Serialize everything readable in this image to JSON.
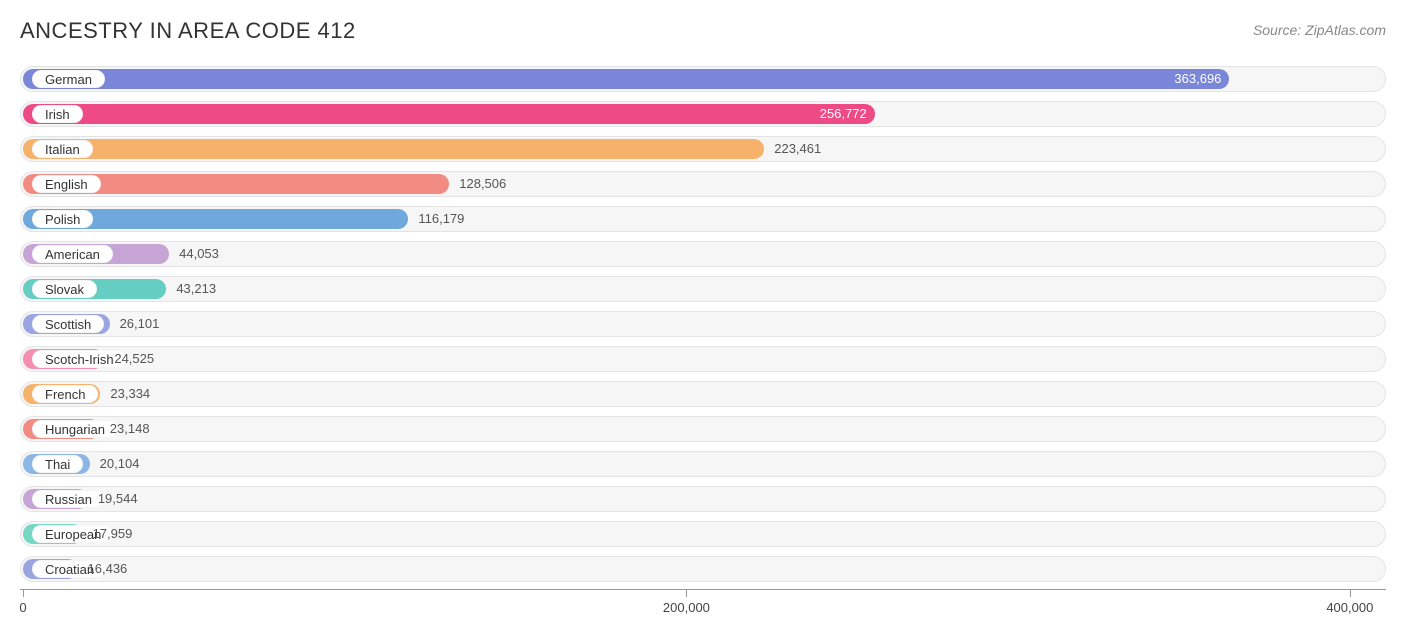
{
  "title": "ANCESTRY IN AREA CODE 412",
  "source": "Source: ZipAtlas.com",
  "chart": {
    "type": "bar",
    "x_max": 410000,
    "track_bg": "#f6f6f6",
    "track_border": "#e4e4e4",
    "label_fontsize": 13,
    "value_fontsize": 13,
    "bars": [
      {
        "label": "German",
        "value": 363696,
        "display": "363,696",
        "color": "#7a86d8",
        "value_text_color": "#ffffff",
        "value_inside": true
      },
      {
        "label": "Irish",
        "value": 256772,
        "display": "256,772",
        "color": "#ee4a86",
        "value_text_color": "#ffffff",
        "value_inside": true
      },
      {
        "label": "Italian",
        "value": 223461,
        "display": "223,461",
        "color": "#f6b26b",
        "value_text_color": "#555555",
        "value_inside": false
      },
      {
        "label": "English",
        "value": 128506,
        "display": "128,506",
        "color": "#f28b82",
        "value_text_color": "#555555",
        "value_inside": false
      },
      {
        "label": "Polish",
        "value": 116179,
        "display": "116,179",
        "color": "#6fa8dc",
        "value_text_color": "#555555",
        "value_inside": false
      },
      {
        "label": "American",
        "value": 44053,
        "display": "44,053",
        "color": "#c6a4d6",
        "value_text_color": "#555555",
        "value_inside": false
      },
      {
        "label": "Slovak",
        "value": 43213,
        "display": "43,213",
        "color": "#66cdc2",
        "value_text_color": "#555555",
        "value_inside": false
      },
      {
        "label": "Scottish",
        "value": 26101,
        "display": "26,101",
        "color": "#9aa4e0",
        "value_text_color": "#555555",
        "value_inside": false
      },
      {
        "label": "Scotch-Irish",
        "value": 24525,
        "display": "24,525",
        "color": "#f48fb1",
        "value_text_color": "#555555",
        "value_inside": false
      },
      {
        "label": "French",
        "value": 23334,
        "display": "23,334",
        "color": "#f6b26b",
        "value_text_color": "#555555",
        "value_inside": false
      },
      {
        "label": "Hungarian",
        "value": 23148,
        "display": "23,148",
        "color": "#f28b82",
        "value_text_color": "#555555",
        "value_inside": false
      },
      {
        "label": "Thai",
        "value": 20104,
        "display": "20,104",
        "color": "#8bb6e6",
        "value_text_color": "#555555",
        "value_inside": false
      },
      {
        "label": "Russian",
        "value": 19544,
        "display": "19,544",
        "color": "#c6a4d6",
        "value_text_color": "#555555",
        "value_inside": false
      },
      {
        "label": "European",
        "value": 17959,
        "display": "17,959",
        "color": "#76d7c4",
        "value_text_color": "#555555",
        "value_inside": false
      },
      {
        "label": "Croatian",
        "value": 16436,
        "display": "16,436",
        "color": "#9aa4e0",
        "value_text_color": "#555555",
        "value_inside": false
      }
    ],
    "axis": {
      "ticks": [
        {
          "value": 0,
          "label": "0"
        },
        {
          "value": 200000,
          "label": "200,000"
        },
        {
          "value": 400000,
          "label": "400,000"
        }
      ],
      "color": "#999999"
    }
  }
}
